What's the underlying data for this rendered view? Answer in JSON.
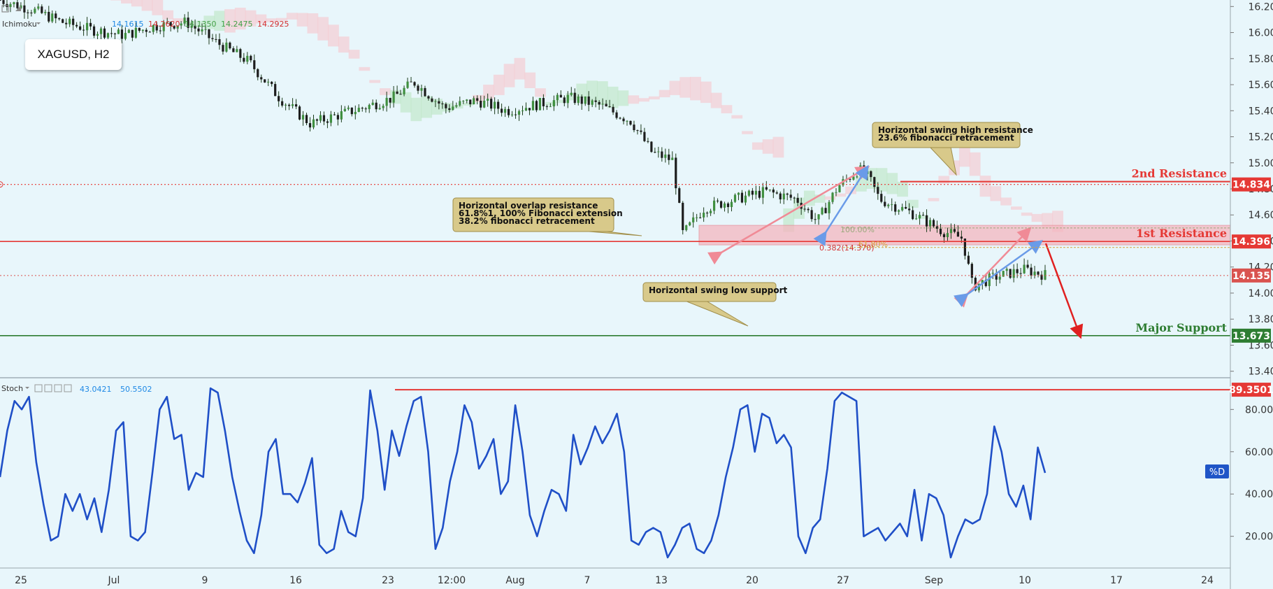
{
  "symbol_label": "XAGUSD, H2",
  "top_indicator": {
    "name": "Ichimoku",
    "values": [
      {
        "text": "14.1615",
        "color": "#1e88e5"
      },
      {
        "text": "14.2620",
        "color": "#d32f2f"
      },
      {
        "text": "14.1350",
        "color": "#43a047"
      },
      {
        "text": "14.2475",
        "color": "#43a047"
      },
      {
        "text": "14.2925",
        "color": "#d32f2f"
      }
    ]
  },
  "stoch_header": {
    "name": "Stoch",
    "value1": "43.0421",
    "value2": "50.5502",
    "value_color": "#1e88e5"
  },
  "stoch_tag": "%D",
  "colors": {
    "background": "#e8f6fb",
    "resistance": "#e53935",
    "support": "#2e7d32",
    "stoch_line": "#1f4fc7",
    "annotation_fill": "#d8c98a",
    "zone": "#f4b6bf"
  },
  "chart_data": [
    {
      "type": "candlestick",
      "symbol": "XAGUSD",
      "timeframe": "H2",
      "x_labels": [
        "25",
        "Jul",
        "9",
        "16",
        "23",
        "12:00",
        "Aug",
        "7",
        "13",
        "20",
        "27",
        "Sep",
        "10",
        "17",
        "24"
      ],
      "y_ticks": [
        "16.200",
        "16.000",
        "15.800",
        "15.600",
        "15.400",
        "15.200",
        "15.000",
        "14.800",
        "14.600",
        "14.400",
        "14.200",
        "14.000",
        "13.800",
        "13.600",
        "13.400"
      ],
      "ylim": [
        13.35,
        16.25
      ],
      "approx_close_path": [
        [
          0,
          16.25
        ],
        [
          3,
          16.18
        ],
        [
          6,
          16.08
        ],
        [
          9,
          16.02
        ],
        [
          12,
          15.98
        ],
        [
          15,
          16.05
        ],
        [
          18,
          16.08
        ],
        [
          21,
          15.92
        ],
        [
          24,
          15.78
        ],
        [
          27,
          15.5
        ],
        [
          30,
          15.3
        ],
        [
          32,
          15.35
        ],
        [
          35,
          15.42
        ],
        [
          38,
          15.5
        ],
        [
          40,
          15.62
        ],
        [
          43,
          15.42
        ],
        [
          46,
          15.48
        ],
        [
          49,
          15.4
        ],
        [
          52,
          15.45
        ],
        [
          55,
          15.5
        ],
        [
          58,
          15.44
        ],
        [
          61,
          15.32
        ],
        [
          63,
          15.08
        ],
        [
          65,
          15.02
        ],
        [
          66,
          14.45
        ],
        [
          68,
          14.65
        ],
        [
          71,
          14.72
        ],
        [
          74,
          14.78
        ],
        [
          77,
          14.72
        ],
        [
          79,
          14.55
        ],
        [
          81,
          14.82
        ],
        [
          83,
          14.95
        ],
        [
          84,
          14.88
        ],
        [
          85,
          14.72
        ],
        [
          88,
          14.62
        ],
        [
          91,
          14.48
        ],
        [
          93,
          14.42
        ],
        [
          94,
          14.05
        ],
        [
          96,
          14.12
        ],
        [
          99,
          14.18
        ],
        [
          101,
          14.14
        ]
      ],
      "levels": [
        {
          "label": "2nd Resistance",
          "value": "14.834",
          "color": "#e53935",
          "style": "dotted"
        },
        {
          "label": "1st Resistance",
          "value": "14.396",
          "color": "#e53935",
          "style": "solid"
        },
        {
          "label": "",
          "value": "14.135",
          "color": "#d9534f",
          "style": "dotted"
        },
        {
          "label": "Major Support",
          "value": "13.673",
          "color": "#2e7d32",
          "style": "solid"
        }
      ],
      "annotations": [
        {
          "lines": [
            "Horizontal overlap resistance",
            "61.8%1, 100% Fibonacci extension",
            "38.2% fibonacci retracement"
          ]
        },
        {
          "lines": [
            "Horizontal swing high resistance",
            "23.6% fibonacci retracement"
          ]
        },
        {
          "lines": [
            "Horizontal swing low support"
          ]
        }
      ],
      "fib_labels": [
        "100.00%",
        "61.80%",
        "0.382(14.370)"
      ]
    },
    {
      "type": "line",
      "indicator": "Stoch",
      "series": [
        {
          "name": "%D"
        }
      ],
      "y_ticks": [
        "80.0000",
        "60.0000",
        "40.0000",
        "20.0000"
      ],
      "ylim": [
        5,
        95
      ],
      "level_label": "89.3501",
      "approx_values": [
        48,
        70,
        84,
        80,
        86,
        55,
        35,
        18,
        20,
        40,
        32,
        40,
        28,
        38,
        22,
        42,
        70,
        74,
        20,
        18,
        22,
        50,
        80,
        86,
        66,
        68,
        42,
        50,
        48,
        90,
        88,
        70,
        48,
        32,
        18,
        12,
        30,
        60,
        66,
        40,
        40,
        36,
        45,
        57,
        16,
        12,
        14,
        32,
        22,
        20,
        38,
        89,
        70,
        42,
        70,
        58,
        72,
        84,
        86,
        60,
        14,
        24,
        46,
        60,
        82,
        74,
        52,
        58,
        66,
        40,
        46,
        82,
        60,
        30,
        20,
        32,
        42,
        40,
        32,
        68,
        54,
        62,
        72,
        64,
        70,
        78,
        60,
        18,
        16,
        22,
        24,
        22,
        10,
        16,
        24,
        26,
        14,
        12,
        18,
        30,
        48,
        62,
        80,
        82,
        60,
        78,
        76,
        64,
        68,
        62,
        20,
        12,
        24,
        28,
        52,
        84,
        88,
        86,
        84,
        20,
        22,
        24,
        18,
        22,
        26,
        20,
        42,
        18,
        40,
        38,
        30,
        10,
        20,
        28,
        26,
        28,
        40,
        72,
        60,
        40,
        34,
        44,
        28,
        62,
        50
      ]
    }
  ]
}
